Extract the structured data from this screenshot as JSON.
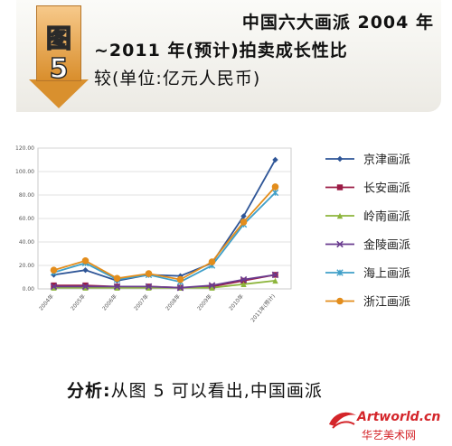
{
  "header": {
    "badge_title": "图",
    "badge_number": "5",
    "title_line1": "中国六大画派 2004 年",
    "title_line2": "~2011 年(预计)拍卖成长性比",
    "title_line3": "较(单位:亿元人民币)"
  },
  "chart_data": {
    "type": "line",
    "categories": [
      "2004年",
      "2005年",
      "2006年",
      "2007年",
      "2008年",
      "2009年",
      "2010年",
      "2011年(预计)"
    ],
    "ylim": [
      0,
      120
    ],
    "yticks": [
      "0.00",
      "20.00",
      "40.00",
      "60.00",
      "80.00",
      "100.00",
      "120.00"
    ],
    "grid": true,
    "legend_position": "right",
    "series": [
      {
        "name": "京津画派",
        "color": "#2e5597",
        "marker": "diamond",
        "values": [
          12,
          16,
          7,
          12,
          11,
          22,
          62,
          110
        ]
      },
      {
        "name": "长安画派",
        "color": "#9b1b45",
        "marker": "square",
        "values": [
          3,
          3,
          2,
          2,
          1,
          2,
          7,
          12
        ]
      },
      {
        "name": "岭南画派",
        "color": "#8db53c",
        "marker": "triangle",
        "values": [
          1,
          1,
          1,
          1,
          1,
          1,
          4,
          7
        ]
      },
      {
        "name": "金陵画派",
        "color": "#6a3c8f",
        "marker": "x",
        "values": [
          2,
          2,
          2,
          2,
          1,
          3,
          8,
          12
        ]
      },
      {
        "name": "海上画派",
        "color": "#3f9fc8",
        "marker": "star",
        "values": [
          14,
          22,
          8,
          12,
          6,
          20,
          55,
          82
        ]
      },
      {
        "name": "浙江画派",
        "color": "#e38d1c",
        "marker": "circle",
        "values": [
          16,
          24,
          9,
          13,
          8,
          23,
          57,
          87
        ]
      }
    ]
  },
  "analysis": {
    "label": "分析:",
    "text": "从图 5 可以看出,中国画派"
  },
  "brand": {
    "site": "Artworld.cn",
    "cn": "华艺美术网"
  }
}
